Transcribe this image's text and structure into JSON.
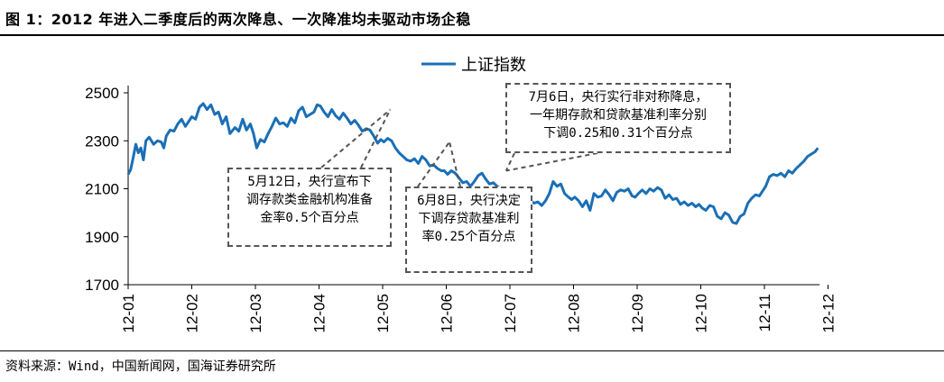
{
  "title": "图 1：2012 年进入二季度后的两次降息、一次降准均未驱动市场企稳",
  "source": "资料来源：Wind，中国新闻网，国海证券研究所",
  "chart_data": {
    "type": "line",
    "series": [
      {
        "name": "上证指数",
        "color": "#1a6fb5",
        "points": [
          [
            0.0,
            2160
          ],
          [
            0.04,
            2180
          ],
          [
            0.08,
            2230
          ],
          [
            0.12,
            2285
          ],
          [
            0.16,
            2250
          ],
          [
            0.2,
            2270
          ],
          [
            0.24,
            2220
          ],
          [
            0.28,
            2300
          ],
          [
            0.33,
            2315
          ],
          [
            0.4,
            2285
          ],
          [
            0.46,
            2300
          ],
          [
            0.52,
            2295
          ],
          [
            0.56,
            2270
          ],
          [
            0.6,
            2320
          ],
          [
            0.66,
            2345
          ],
          [
            0.72,
            2340
          ],
          [
            0.78,
            2370
          ],
          [
            0.84,
            2390
          ],
          [
            0.9,
            2360
          ],
          [
            0.95,
            2380
          ],
          [
            1.0,
            2400
          ],
          [
            1.06,
            2390
          ],
          [
            1.12,
            2440
          ],
          [
            1.18,
            2455
          ],
          [
            1.24,
            2430
          ],
          [
            1.3,
            2450
          ],
          [
            1.36,
            2410
          ],
          [
            1.42,
            2420
          ],
          [
            1.48,
            2370
          ],
          [
            1.54,
            2400
          ],
          [
            1.6,
            2330
          ],
          [
            1.68,
            2355
          ],
          [
            1.74,
            2340
          ],
          [
            1.8,
            2390
          ],
          [
            1.86,
            2345
          ],
          [
            1.92,
            2370
          ],
          [
            1.97,
            2330
          ],
          [
            2.02,
            2270
          ],
          [
            2.08,
            2305
          ],
          [
            2.14,
            2295
          ],
          [
            2.2,
            2330
          ],
          [
            2.26,
            2360
          ],
          [
            2.32,
            2395
          ],
          [
            2.38,
            2370
          ],
          [
            2.44,
            2375
          ],
          [
            2.5,
            2360
          ],
          [
            2.56,
            2395
          ],
          [
            2.62,
            2375
          ],
          [
            2.68,
            2425
          ],
          [
            2.74,
            2440
          ],
          [
            2.8,
            2400
          ],
          [
            2.86,
            2410
          ],
          [
            2.92,
            2420
          ],
          [
            2.97,
            2450
          ],
          [
            3.02,
            2445
          ],
          [
            3.08,
            2420
          ],
          [
            3.14,
            2400
          ],
          [
            3.2,
            2430
          ],
          [
            3.26,
            2405
          ],
          [
            3.32,
            2390
          ],
          [
            3.38,
            2415
          ],
          [
            3.44,
            2395
          ],
          [
            3.5,
            2370
          ],
          [
            3.56,
            2385
          ],
          [
            3.62,
            2365
          ],
          [
            3.68,
            2340
          ],
          [
            3.74,
            2350
          ],
          [
            3.8,
            2345
          ],
          [
            3.86,
            2320
          ],
          [
            3.92,
            2290
          ],
          [
            3.97,
            2305
          ],
          [
            4.02,
            2295
          ],
          [
            4.08,
            2310
          ],
          [
            4.14,
            2300
          ],
          [
            4.2,
            2270
          ],
          [
            4.26,
            2250
          ],
          [
            4.32,
            2235
          ],
          [
            4.38,
            2220
          ],
          [
            4.44,
            2215
          ],
          [
            4.5,
            2225
          ],
          [
            4.56,
            2205
          ],
          [
            4.62,
            2235
          ],
          [
            4.68,
            2220
          ],
          [
            4.74,
            2195
          ],
          [
            4.8,
            2200
          ],
          [
            4.86,
            2185
          ],
          [
            4.92,
            2175
          ],
          [
            4.97,
            2175
          ],
          [
            5.02,
            2160
          ],
          [
            5.08,
            2175
          ],
          [
            5.14,
            2165
          ],
          [
            5.2,
            2145
          ],
          [
            5.26,
            2125
          ],
          [
            5.32,
            2130
          ],
          [
            5.38,
            2110
          ],
          [
            5.44,
            2130
          ],
          [
            5.5,
            2155
          ],
          [
            5.56,
            2165
          ],
          [
            5.62,
            2140
          ],
          [
            5.68,
            2120
          ],
          [
            5.74,
            2125
          ],
          [
            5.8,
            2110
          ],
          [
            5.86,
            2100
          ],
          [
            5.92,
            2080
          ],
          [
            5.97,
            2075
          ],
          [
            6.02,
            2060
          ],
          [
            6.08,
            2075
          ],
          [
            6.14,
            2045
          ],
          [
            6.2,
            2090
          ],
          [
            6.26,
            2070
          ],
          [
            6.32,
            2050
          ],
          [
            6.38,
            2040
          ],
          [
            6.44,
            2045
          ],
          [
            6.5,
            2030
          ],
          [
            6.56,
            2050
          ],
          [
            6.62,
            2080
          ],
          [
            6.68,
            2130
          ],
          [
            6.74,
            2110
          ],
          [
            6.8,
            2120
          ],
          [
            6.86,
            2080
          ],
          [
            6.92,
            2065
          ],
          [
            6.97,
            2055
          ],
          [
            7.02,
            2065
          ],
          [
            7.08,
            2050
          ],
          [
            7.14,
            2025
          ],
          [
            7.2,
            2050
          ],
          [
            7.26,
            2010
          ],
          [
            7.32,
            2080
          ],
          [
            7.38,
            2065
          ],
          [
            7.44,
            2070
          ],
          [
            7.5,
            2095
          ],
          [
            7.56,
            2075
          ],
          [
            7.62,
            2050
          ],
          [
            7.68,
            2085
          ],
          [
            7.74,
            2095
          ],
          [
            7.8,
            2090
          ],
          [
            7.86,
            2100
          ],
          [
            7.92,
            2070
          ],
          [
            7.97,
            2065
          ],
          [
            8.02,
            2080
          ],
          [
            8.08,
            2095
          ],
          [
            8.14,
            2080
          ],
          [
            8.2,
            2100
          ],
          [
            8.26,
            2090
          ],
          [
            8.32,
            2105
          ],
          [
            8.38,
            2095
          ],
          [
            8.44,
            2060
          ],
          [
            8.5,
            2075
          ],
          [
            8.56,
            2055
          ],
          [
            8.62,
            2060
          ],
          [
            8.68,
            2035
          ],
          [
            8.74,
            2045
          ],
          [
            8.8,
            2030
          ],
          [
            8.86,
            2040
          ],
          [
            8.92,
            2025
          ],
          [
            8.97,
            2035
          ],
          [
            9.02,
            2020
          ],
          [
            9.08,
            2010
          ],
          [
            9.14,
            2030
          ],
          [
            9.2,
            2025
          ],
          [
            9.26,
            1985
          ],
          [
            9.32,
            1975
          ],
          [
            9.38,
            2000
          ],
          [
            9.44,
            1990
          ],
          [
            9.5,
            1960
          ],
          [
            9.56,
            1955
          ],
          [
            9.62,
            1985
          ],
          [
            9.68,
            1995
          ],
          [
            9.74,
            2040
          ],
          [
            9.8,
            2060
          ],
          [
            9.86,
            2075
          ],
          [
            9.92,
            2070
          ],
          [
            9.97,
            2090
          ],
          [
            10.02,
            2110
          ],
          [
            10.08,
            2150
          ],
          [
            10.14,
            2160
          ],
          [
            10.2,
            2155
          ],
          [
            10.26,
            2165
          ],
          [
            10.32,
            2150
          ],
          [
            10.38,
            2175
          ],
          [
            10.44,
            2165
          ],
          [
            10.5,
            2185
          ],
          [
            10.56,
            2200
          ],
          [
            10.62,
            2215
          ],
          [
            10.68,
            2235
          ],
          [
            10.74,
            2245
          ],
          [
            10.8,
            2255
          ],
          [
            10.84,
            2270
          ]
        ]
      }
    ],
    "x_tick_labels": [
      "12-01",
      "12-02",
      "12-03",
      "12-04",
      "12-05",
      "12-06",
      "12-07",
      "12-08",
      "12-09",
      "12-10",
      "12-11",
      "12-12"
    ],
    "xlim": [
      0,
      10.84
    ],
    "ylim": [
      1700,
      2500
    ],
    "y_ticks": [
      1700,
      1900,
      2100,
      2300,
      2500
    ],
    "legend_position": "top-center",
    "grid": false,
    "annotations": [
      {
        "id": "may",
        "lines": [
          "5月12日，央行宣布下",
          "调存款类金融机构准备",
          "金率0.5个百分点"
        ],
        "target_x": 4.12,
        "target_y": 2430
      },
      {
        "id": "jun",
        "lines": [
          "6月8日，央行决定",
          "下调存贷款基准利",
          "率0.25个百分点"
        ],
        "target_x": 5.05,
        "target_y": 2295
      },
      {
        "id": "jul",
        "lines": [
          "7月6日，央行实行非对称降息，",
          "一年期存款和贷款基准利率分别",
          "下调0.25和0.31个百分点"
        ],
        "target_x": 5.94,
        "target_y": 2175
      }
    ]
  }
}
